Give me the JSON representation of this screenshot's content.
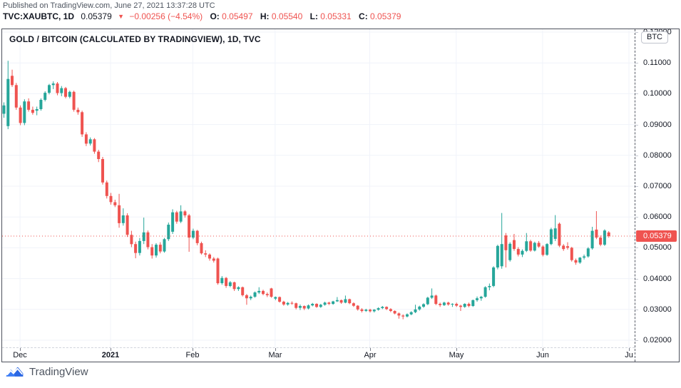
{
  "header": {
    "published_line": "Published on TradingView.com, June 27, 2021 13:37:28 UTC",
    "symbol_line": {
      "symbol": "TVC:XAUBTC, 1D",
      "last_price": "0.05379",
      "direction_symbol": "▼",
      "change": "−0.00256 (−4.54%)",
      "ohlc": {
        "o_label": "O:",
        "o": "0.05497",
        "h_label": "H:",
        "h": "0.05540",
        "l_label": "L:",
        "l": "0.05331",
        "c_label": "C:",
        "c": "0.05379"
      }
    }
  },
  "chart": {
    "title": "GOLD / BITCOIN (CALCULATED BY TRADINGVIEW), 1D, TVC",
    "currency_badge": "BTC",
    "price_flag": "0.05379"
  },
  "footer": {
    "brand": "TradingView"
  },
  "colors": {
    "up": "#26a69a",
    "down": "#ef5350",
    "grid": "#f0f3fa",
    "price_line": "#ef5350",
    "flag_bg": "#ef5350",
    "text": "#131722",
    "muted": "#4e5560",
    "brand_blue": "#3c7df5"
  },
  "chart_data": {
    "type": "candlestick",
    "symbol": "TVC:XAUBTC",
    "timeframe": "1D",
    "title": "GOLD / BITCOIN (CALCULATED BY TRADINGVIEW), 1D, TVC",
    "grid": true,
    "legend_position": "none",
    "current_price": 0.05379,
    "last_candle": {
      "open": 0.05497,
      "high": 0.0554,
      "low": 0.05331,
      "close": 0.05379
    },
    "y_axis": {
      "min": 0.02,
      "max": 0.12,
      "unit": "BTC",
      "ticks": [
        {
          "label": "0.12000",
          "value": 0.12
        },
        {
          "label": "0.11000",
          "value": 0.11
        },
        {
          "label": "0.10000",
          "value": 0.1
        },
        {
          "label": "0.09000",
          "value": 0.09
        },
        {
          "label": "0.08000",
          "value": 0.08
        },
        {
          "label": "0.07000",
          "value": 0.07
        },
        {
          "label": "0.06000",
          "value": 0.06
        },
        {
          "label": "0.05000",
          "value": 0.05
        },
        {
          "label": "0.04000",
          "value": 0.04
        },
        {
          "label": "0.03000",
          "value": 0.03
        },
        {
          "label": "0.02000",
          "value": 0.02
        }
      ]
    },
    "x_axis": {
      "range": "Nov 2020 – Jul 2021",
      "labels": [
        {
          "text": "Dec",
          "index": 4,
          "bold": false
        },
        {
          "text": "2021",
          "index": 26,
          "bold": true
        },
        {
          "text": "Feb",
          "index": 46,
          "bold": false
        },
        {
          "text": "Mar",
          "index": 66,
          "bold": false
        },
        {
          "text": "Apr",
          "index": 89,
          "bold": false
        },
        {
          "text": "May",
          "index": 110,
          "bold": false
        },
        {
          "text": "Jun",
          "index": 131,
          "bold": false
        },
        {
          "text": "Ju",
          "index": 152,
          "bold": false
        }
      ]
    },
    "candles_format": [
      "open",
      "high",
      "low",
      "close"
    ],
    "candles": [
      [
        0.0935,
        0.0972,
        0.0922,
        0.0962
      ],
      [
        0.0895,
        0.1107,
        0.0885,
        0.1048
      ],
      [
        0.1058,
        0.1078,
        0.1022,
        0.1028
      ],
      [
        0.1028,
        0.1035,
        0.0948,
        0.0955
      ],
      [
        0.0955,
        0.0962,
        0.0898,
        0.0905
      ],
      [
        0.0905,
        0.0982,
        0.0898,
        0.0975
      ],
      [
        0.0975,
        0.0985,
        0.0942,
        0.0948
      ],
      [
        0.0948,
        0.0958,
        0.0932,
        0.0938
      ],
      [
        0.0945,
        0.0958,
        0.093,
        0.095
      ],
      [
        0.095,
        0.0985,
        0.0945,
        0.098
      ],
      [
        0.098,
        0.1008,
        0.0975,
        0.1003
      ],
      [
        0.1003,
        0.1032,
        0.0998,
        0.1028
      ],
      [
        0.1028,
        0.104,
        0.1015,
        0.1033
      ],
      [
        0.1033,
        0.1038,
        0.0995,
        0.1002
      ],
      [
        0.1002,
        0.1025,
        0.0992,
        0.1018
      ],
      [
        0.1018,
        0.1022,
        0.0985,
        0.099
      ],
      [
        0.099,
        0.101,
        0.0985,
        0.1006
      ],
      [
        0.1006,
        0.101,
        0.0942,
        0.0948
      ],
      [
        0.0948,
        0.0955,
        0.0932,
        0.094
      ],
      [
        0.094,
        0.0945,
        0.086,
        0.0868
      ],
      [
        0.0868,
        0.0875,
        0.083,
        0.0838
      ],
      [
        0.0838,
        0.0858,
        0.0832,
        0.0852
      ],
      [
        0.0852,
        0.0856,
        0.0805,
        0.0812
      ],
      [
        0.0812,
        0.0818,
        0.0778,
        0.0788
      ],
      [
        0.0788,
        0.0795,
        0.0705,
        0.0712
      ],
      [
        0.0712,
        0.0718,
        0.066,
        0.0668
      ],
      [
        0.0668,
        0.0678,
        0.064,
        0.0648
      ],
      [
        0.0648,
        0.0656,
        0.0632,
        0.0638
      ],
      [
        0.0638,
        0.0675,
        0.0565,
        0.058
      ],
      [
        0.058,
        0.0628,
        0.0572,
        0.0605
      ],
      [
        0.0605,
        0.0612,
        0.0535,
        0.0542
      ],
      [
        0.0542,
        0.0555,
        0.0502,
        0.0512
      ],
      [
        0.0512,
        0.052,
        0.0466,
        0.0483
      ],
      [
        0.0483,
        0.0532,
        0.0475,
        0.0522
      ],
      [
        0.0522,
        0.0598,
        0.0512,
        0.055
      ],
      [
        0.055,
        0.0556,
        0.0495,
        0.0502
      ],
      [
        0.0502,
        0.0512,
        0.0465,
        0.0475
      ],
      [
        0.0475,
        0.0515,
        0.0468,
        0.051
      ],
      [
        0.051,
        0.0518,
        0.0482,
        0.0488
      ],
      [
        0.0488,
        0.0532,
        0.0484,
        0.0528
      ],
      [
        0.0528,
        0.0582,
        0.0522,
        0.0575
      ],
      [
        0.0552,
        0.0625,
        0.0545,
        0.0615
      ],
      [
        0.0615,
        0.062,
        0.0578,
        0.0585
      ],
      [
        0.0585,
        0.0638,
        0.058,
        0.0618
      ],
      [
        0.0618,
        0.0622,
        0.0598,
        0.0605
      ],
      [
        0.0605,
        0.061,
        0.0487,
        0.0533
      ],
      [
        0.0533,
        0.0562,
        0.0528,
        0.0555
      ],
      [
        0.0555,
        0.0558,
        0.0508,
        0.0515
      ],
      [
        0.0515,
        0.052,
        0.0478,
        0.0482
      ],
      [
        0.0482,
        0.0492,
        0.047,
        0.0478
      ],
      [
        0.0478,
        0.0482,
        0.0458,
        0.0465
      ],
      [
        0.0465,
        0.047,
        0.0452,
        0.0458
      ],
      [
        0.0465,
        0.0468,
        0.038,
        0.0385
      ],
      [
        0.0385,
        0.0408,
        0.038,
        0.0402
      ],
      [
        0.0402,
        0.0405,
        0.037,
        0.0376
      ],
      [
        0.0376,
        0.0392,
        0.0372,
        0.0388
      ],
      [
        0.0388,
        0.039,
        0.036,
        0.0366
      ],
      [
        0.0366,
        0.0375,
        0.036,
        0.0372
      ],
      [
        0.0372,
        0.0374,
        0.0342,
        0.0346
      ],
      [
        0.0346,
        0.035,
        0.0315,
        0.0336
      ],
      [
        0.0336,
        0.0345,
        0.033,
        0.0341
      ],
      [
        0.0341,
        0.0358,
        0.0338,
        0.0355
      ],
      [
        0.0355,
        0.0372,
        0.035,
        0.036
      ],
      [
        0.036,
        0.0364,
        0.0346,
        0.035
      ],
      [
        0.035,
        0.0355,
        0.034,
        0.0346
      ],
      [
        0.0368,
        0.037,
        0.0338,
        0.0341
      ],
      [
        0.0335,
        0.0342,
        0.033,
        0.034
      ],
      [
        0.034,
        0.0342,
        0.0322,
        0.0325
      ],
      [
        0.0325,
        0.0328,
        0.0312,
        0.0316
      ],
      [
        0.0316,
        0.0324,
        0.0312,
        0.0321
      ],
      [
        0.0321,
        0.0326,
        0.0315,
        0.032
      ],
      [
        0.032,
        0.0322,
        0.03,
        0.0305
      ],
      [
        0.0305,
        0.0316,
        0.0298,
        0.0311
      ],
      [
        0.0311,
        0.0313,
        0.0298,
        0.0303
      ],
      [
        0.0303,
        0.0316,
        0.03,
        0.0313
      ],
      [
        0.0313,
        0.0321,
        0.031,
        0.0318
      ],
      [
        0.0318,
        0.032,
        0.0305,
        0.0308
      ],
      [
        0.0308,
        0.0318,
        0.0305,
        0.0315
      ],
      [
        0.0315,
        0.0325,
        0.0312,
        0.0322
      ],
      [
        0.0322,
        0.0325,
        0.0314,
        0.0318
      ],
      [
        0.0318,
        0.0328,
        0.0315,
        0.0326
      ],
      [
        0.0326,
        0.034,
        0.0324,
        0.033
      ],
      [
        0.033,
        0.0332,
        0.0318,
        0.0322
      ],
      [
        0.0322,
        0.0345,
        0.032,
        0.0333
      ],
      [
        0.0333,
        0.0335,
        0.0317,
        0.032
      ],
      [
        0.032,
        0.0323,
        0.0308,
        0.0312
      ],
      [
        0.0312,
        0.0314,
        0.0296,
        0.03
      ],
      [
        0.03,
        0.0304,
        0.029,
        0.0295
      ],
      [
        0.0295,
        0.0302,
        0.0292,
        0.0299
      ],
      [
        0.0299,
        0.0302,
        0.029,
        0.0294
      ],
      [
        0.0294,
        0.0301,
        0.029,
        0.0299
      ],
      [
        0.0299,
        0.0307,
        0.0296,
        0.0304
      ],
      [
        0.0304,
        0.0311,
        0.0301,
        0.0308
      ],
      [
        0.0308,
        0.031,
        0.0298,
        0.0301
      ],
      [
        0.0301,
        0.0304,
        0.0291,
        0.0295
      ],
      [
        0.0295,
        0.0297,
        0.0284,
        0.0287
      ],
      [
        0.0287,
        0.029,
        0.027,
        0.028
      ],
      [
        0.028,
        0.0284,
        0.0268,
        0.0277
      ],
      [
        0.0277,
        0.0287,
        0.0274,
        0.0284
      ],
      [
        0.0284,
        0.0294,
        0.0281,
        0.0291
      ],
      [
        0.0291,
        0.0315,
        0.0288,
        0.03
      ],
      [
        0.03,
        0.0312,
        0.0296,
        0.0309
      ],
      [
        0.0309,
        0.032,
        0.0305,
        0.0317
      ],
      [
        0.0317,
        0.0341,
        0.0314,
        0.0338
      ],
      [
        0.0338,
        0.0368,
        0.0334,
        0.0345
      ],
      [
        0.0345,
        0.0348,
        0.0314,
        0.0318
      ],
      [
        0.0318,
        0.0322,
        0.0308,
        0.0314
      ],
      [
        0.0314,
        0.0325,
        0.0311,
        0.0322
      ],
      [
        0.0322,
        0.0325,
        0.0312,
        0.0316
      ],
      [
        0.0316,
        0.032,
        0.0308,
        0.0318
      ],
      [
        0.0318,
        0.0322,
        0.0308,
        0.0312
      ],
      [
        0.0312,
        0.0315,
        0.0295,
        0.0308
      ],
      [
        0.0308,
        0.032,
        0.0305,
        0.0318
      ],
      [
        0.0318,
        0.0322,
        0.0307,
        0.0311
      ],
      [
        0.0311,
        0.0332,
        0.0308,
        0.033
      ],
      [
        0.033,
        0.0342,
        0.0325,
        0.0336
      ],
      [
        0.0336,
        0.0344,
        0.0328,
        0.0341
      ],
      [
        0.0341,
        0.0375,
        0.0338,
        0.0372
      ],
      [
        0.0372,
        0.0384,
        0.0362,
        0.0376
      ],
      [
        0.0376,
        0.044,
        0.0372,
        0.0436
      ],
      [
        0.0436,
        0.051,
        0.043,
        0.0506
      ],
      [
        0.044,
        0.0613,
        0.0432,
        0.0512
      ],
      [
        0.054,
        0.0548,
        0.0436,
        0.0492
      ],
      [
        0.046,
        0.0518,
        0.0455,
        0.0513
      ],
      [
        0.0525,
        0.0545,
        0.049,
        0.0496
      ],
      [
        0.0496,
        0.0502,
        0.0472,
        0.0478
      ],
      [
        0.0478,
        0.0495,
        0.047,
        0.049
      ],
      [
        0.049,
        0.0548,
        0.0486,
        0.0521
      ],
      [
        0.0521,
        0.0526,
        0.0487,
        0.0491
      ],
      [
        0.0491,
        0.052,
        0.0488,
        0.0516
      ],
      [
        0.0516,
        0.0522,
        0.05,
        0.0504
      ],
      [
        0.0504,
        0.0508,
        0.0472,
        0.0477
      ],
      [
        0.0477,
        0.0515,
        0.0474,
        0.0512
      ],
      [
        0.0512,
        0.0565,
        0.0508,
        0.056
      ],
      [
        0.0529,
        0.0606,
        0.0522,
        0.0563
      ],
      [
        0.0578,
        0.0582,
        0.0502,
        0.0507
      ],
      [
        0.0507,
        0.0512,
        0.049,
        0.0496
      ],
      [
        0.0505,
        0.0518,
        0.0494,
        0.05
      ],
      [
        0.05,
        0.0503,
        0.0455,
        0.046
      ],
      [
        0.046,
        0.0465,
        0.0445,
        0.0452
      ],
      [
        0.0452,
        0.047,
        0.0448,
        0.0468
      ],
      [
        0.0468,
        0.0478,
        0.0462,
        0.0472
      ],
      [
        0.0472,
        0.0502,
        0.0468,
        0.0498
      ],
      [
        0.0498,
        0.0568,
        0.0494,
        0.0555
      ],
      [
        0.0559,
        0.0619,
        0.0528,
        0.0533
      ],
      [
        0.0533,
        0.054,
        0.0505,
        0.051
      ],
      [
        0.051,
        0.056,
        0.0506,
        0.0556
      ],
      [
        0.05497,
        0.0554,
        0.05331,
        0.05379
      ]
    ]
  }
}
